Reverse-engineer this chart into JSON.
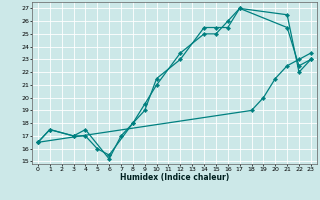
{
  "title": "",
  "xlabel": "Humidex (Indice chaleur)",
  "bg_color": "#cce8e8",
  "grid_color": "#ffffff",
  "line_color": "#008080",
  "xlim": [
    -0.5,
    23.5
  ],
  "ylim": [
    14.8,
    27.5
  ],
  "xticks": [
    0,
    1,
    2,
    3,
    4,
    5,
    6,
    7,
    8,
    9,
    10,
    11,
    12,
    13,
    14,
    15,
    16,
    17,
    18,
    19,
    20,
    21,
    22,
    23
  ],
  "yticks": [
    15,
    16,
    17,
    18,
    19,
    20,
    21,
    22,
    23,
    24,
    25,
    26,
    27
  ],
  "line1_x": [
    0,
    1,
    3,
    4,
    6,
    7,
    8,
    9,
    10,
    12,
    14,
    15,
    16,
    17,
    21,
    22,
    23
  ],
  "line1_y": [
    16.5,
    17.5,
    17.0,
    17.5,
    15.2,
    17.0,
    18.0,
    19.0,
    21.5,
    23.0,
    25.5,
    25.5,
    25.5,
    27.0,
    26.5,
    22.0,
    23.0
  ],
  "line2_x": [
    0,
    1,
    3,
    4,
    5,
    6,
    8,
    9,
    10,
    12,
    14,
    15,
    16,
    17,
    21,
    22,
    23
  ],
  "line2_y": [
    16.5,
    17.5,
    17.0,
    17.0,
    16.0,
    15.5,
    18.0,
    19.5,
    21.0,
    23.5,
    25.0,
    25.0,
    26.0,
    27.0,
    25.5,
    22.5,
    23.0
  ],
  "line3_x": [
    0,
    18,
    19,
    20,
    21,
    22,
    23
  ],
  "line3_y": [
    16.5,
    19.0,
    20.0,
    21.5,
    22.5,
    23.0,
    23.5
  ]
}
